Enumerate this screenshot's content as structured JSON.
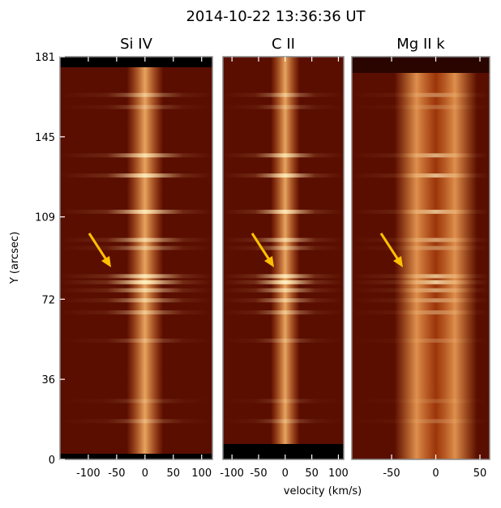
{
  "figure": {
    "title": "2014-10-22 13:36:36 UT",
    "x_label": "velocity (km/s)",
    "y_label": "Y (arcsec)"
  },
  "chart_data": [
    {
      "type": "image",
      "title": "Si IV",
      "xlim": [
        -150,
        119
      ],
      "xticks": [
        -100,
        -50,
        0,
        50,
        100
      ],
      "ylim": [
        0,
        181
      ],
      "yticks": [
        0,
        36,
        72,
        109,
        145,
        181
      ]
    },
    {
      "type": "image",
      "title": "C II",
      "xlim": [
        -117,
        110
      ],
      "xticks": [
        -100,
        -50,
        0,
        50,
        100
      ],
      "ylim": [
        0,
        181
      ]
    },
    {
      "type": "image",
      "title": "Mg II k",
      "xlim": [
        -95,
        61
      ],
      "xticks": [
        -50,
        0,
        50
      ],
      "ylim": [
        0,
        181
      ]
    }
  ]
}
